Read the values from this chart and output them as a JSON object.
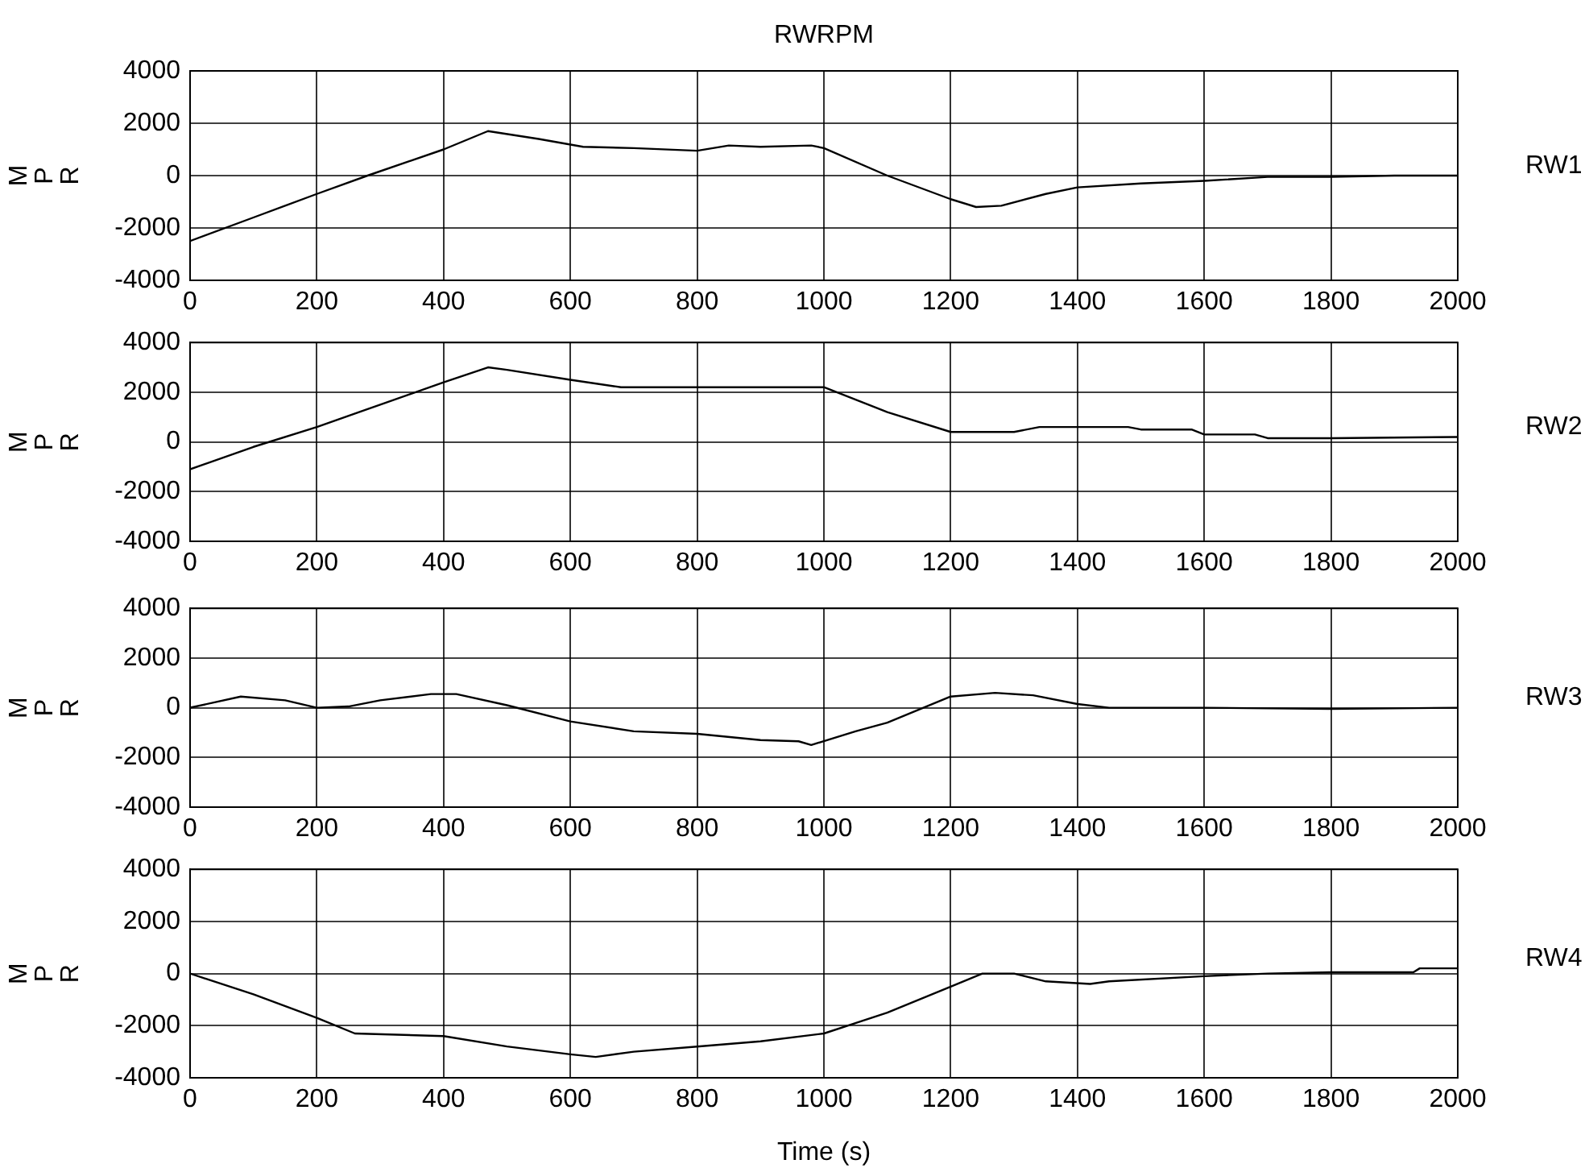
{
  "chart_data": [
    {
      "type": "line",
      "title": "RWRPM",
      "ylabel": "MPR",
      "xlim": [
        0,
        2000
      ],
      "xticks": [
        0,
        200,
        400,
        600,
        800,
        1000,
        1200,
        1400,
        1600,
        1800,
        2000
      ],
      "ylim": [
        -4000,
        4000
      ],
      "yticks": [
        -4000,
        -2000,
        0,
        2000,
        4000
      ],
      "grid": true,
      "legend": false,
      "marker": "none",
      "series": [
        {
          "name": "RW1",
          "color": "#000000",
          "x": [
            0,
            100,
            200,
            280,
            400,
            470,
            550,
            620,
            700,
            800,
            850,
            900,
            980,
            1000,
            1100,
            1200,
            1240,
            1280,
            1350,
            1400,
            1500,
            1600,
            1700,
            1800,
            1900,
            2000
          ],
          "values": [
            -2500,
            -1600,
            -700,
            0,
            1000,
            1700,
            1400,
            1100,
            1050,
            950,
            1150,
            1100,
            1150,
            1050,
            0,
            -900,
            -1200,
            -1150,
            -700,
            -450,
            -300,
            -200,
            -50,
            -50,
            0,
            0
          ]
        }
      ]
    },
    {
      "type": "line",
      "ylabel": "MPR",
      "xlim": [
        0,
        2000
      ],
      "xticks": [
        0,
        200,
        400,
        600,
        800,
        1000,
        1200,
        1400,
        1600,
        1800,
        2000
      ],
      "ylim": [
        -4000,
        4000
      ],
      "yticks": [
        -4000,
        -2000,
        0,
        2000,
        4000
      ],
      "grid": true,
      "legend": false,
      "marker": "none",
      "series": [
        {
          "name": "RW2",
          "color": "#000000",
          "x": [
            0,
            100,
            200,
            300,
            400,
            470,
            500,
            600,
            680,
            800,
            1000,
            1100,
            1200,
            1300,
            1340,
            1480,
            1500,
            1580,
            1600,
            1680,
            1700,
            1800,
            2000
          ],
          "values": [
            -1100,
            -200,
            600,
            1500,
            2400,
            3000,
            2900,
            2500,
            2200,
            2200,
            2200,
            1200,
            400,
            400,
            600,
            600,
            500,
            500,
            300,
            300,
            150,
            150,
            200
          ]
        }
      ]
    },
    {
      "type": "line",
      "ylabel": "MPR",
      "xlim": [
        0,
        2000
      ],
      "xticks": [
        0,
        200,
        400,
        600,
        800,
        1000,
        1200,
        1400,
        1600,
        1800,
        2000
      ],
      "ylim": [
        -4000,
        4000
      ],
      "yticks": [
        -4000,
        -2000,
        0,
        2000,
        4000
      ],
      "grid": true,
      "legend": false,
      "marker": "none",
      "series": [
        {
          "name": "RW3",
          "color": "#000000",
          "x": [
            0,
            80,
            150,
            200,
            250,
            300,
            380,
            420,
            500,
            600,
            700,
            800,
            900,
            960,
            980,
            1050,
            1100,
            1200,
            1270,
            1330,
            1400,
            1450,
            1600,
            1800,
            2000
          ],
          "values": [
            0,
            450,
            300,
            0,
            50,
            300,
            550,
            550,
            100,
            -550,
            -950,
            -1050,
            -1300,
            -1350,
            -1500,
            -950,
            -600,
            450,
            600,
            500,
            150,
            0,
            0,
            -50,
            0
          ]
        }
      ]
    },
    {
      "type": "line",
      "xlabel": "Time (s)",
      "ylabel": "MPR",
      "xlim": [
        0,
        2000
      ],
      "xticks": [
        0,
        200,
        400,
        600,
        800,
        1000,
        1200,
        1400,
        1600,
        1800,
        2000
      ],
      "ylim": [
        -4000,
        4000
      ],
      "yticks": [
        -4000,
        -2000,
        0,
        2000,
        4000
      ],
      "grid": true,
      "legend": false,
      "marker": "none",
      "series": [
        {
          "name": "RW4",
          "color": "#000000",
          "x": [
            0,
            100,
            200,
            260,
            400,
            500,
            600,
            640,
            700,
            800,
            900,
            1000,
            1100,
            1200,
            1250,
            1300,
            1350,
            1420,
            1450,
            1600,
            1700,
            1800,
            1930,
            1940,
            2000
          ],
          "values": [
            0,
            -800,
            -1700,
            -2300,
            -2400,
            -2800,
            -3100,
            -3200,
            -3000,
            -2800,
            -2600,
            -2300,
            -1500,
            -500,
            0,
            0,
            -300,
            -400,
            -300,
            -100,
            0,
            50,
            50,
            200,
            200
          ]
        }
      ]
    }
  ]
}
